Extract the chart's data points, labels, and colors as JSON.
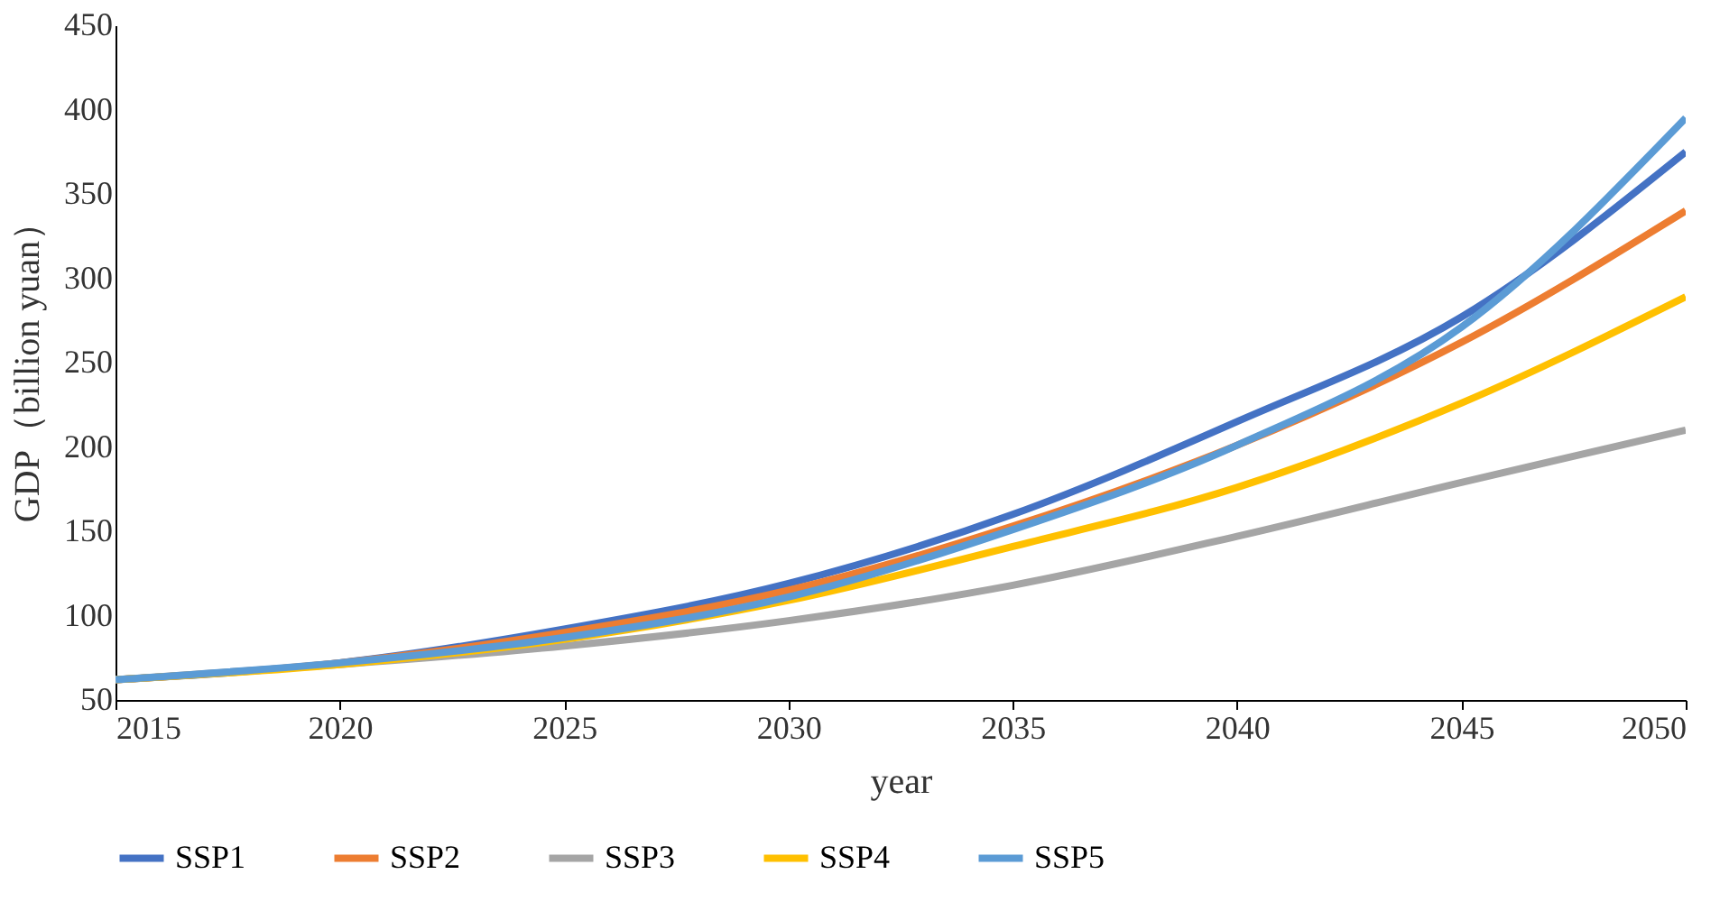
{
  "chart_data": {
    "type": "line",
    "xlabel": "year",
    "ylabel": "GDP（billion yuan）",
    "x": [
      2015,
      2020,
      2025,
      2030,
      2035,
      2040,
      2045,
      2050
    ],
    "xlim": [
      2015,
      2050
    ],
    "xticks": [
      2015,
      2020,
      2025,
      2030,
      2035,
      2040,
      2045,
      2050
    ],
    "ylim": [
      50,
      450
    ],
    "yticks": [
      50,
      100,
      150,
      200,
      250,
      300,
      350,
      400,
      450
    ],
    "grid": false,
    "legend": "bottom",
    "marker": "none",
    "line_style": "solid",
    "series": [
      {
        "name": "SSP1",
        "color": "#4472c4",
        "values": [
          62,
          72,
          92,
          119,
          160,
          215,
          277,
          375
        ]
      },
      {
        "name": "SSP2",
        "color": "#ed7d31",
        "values": [
          62,
          72,
          90,
          115,
          153,
          201,
          262,
          340
        ]
      },
      {
        "name": "SSP3",
        "color": "#a5a5a5",
        "values": [
          62,
          71,
          82,
          97,
          118,
          147,
          179,
          210
        ]
      },
      {
        "name": "SSP4",
        "color": "#ffc000",
        "values": [
          62,
          71,
          86,
          109,
          141,
          176,
          226,
          289
        ]
      },
      {
        "name": "SSP5",
        "color": "#5b9bd5",
        "values": [
          62,
          72,
          87,
          111,
          151,
          201,
          271,
          395
        ]
      }
    ]
  }
}
